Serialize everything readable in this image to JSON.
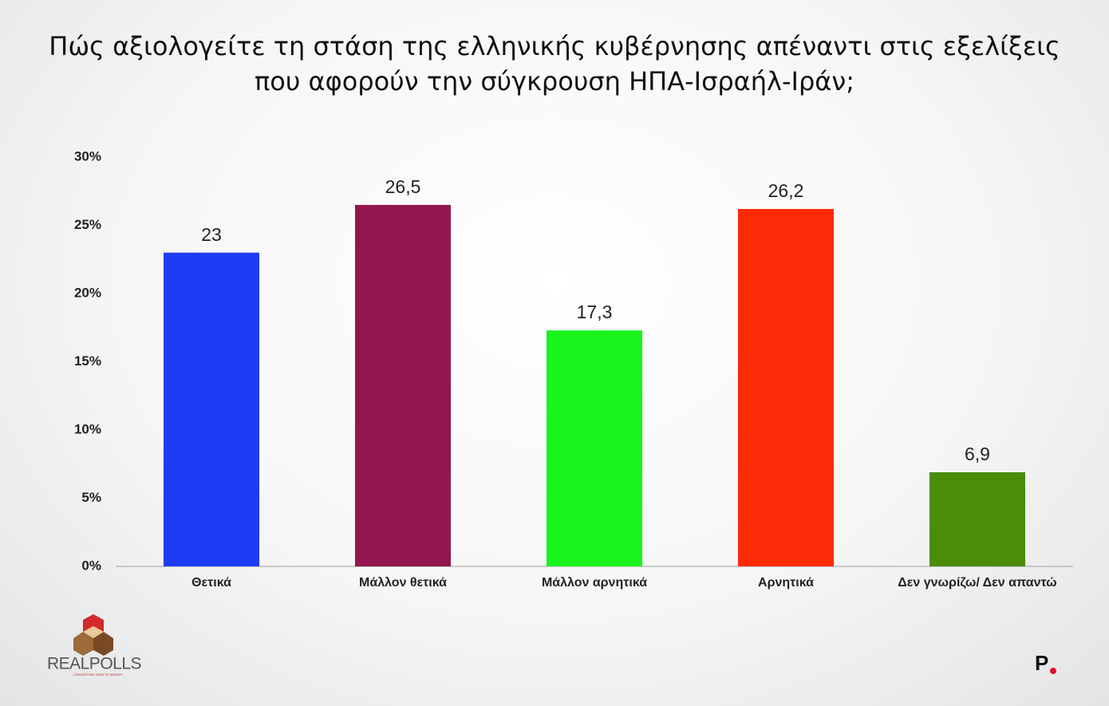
{
  "chart_data": {
    "type": "bar",
    "title": "Πώς αξιολογείτε τη στάση της ελληνικής κυβέρνησης απέναντι στις εξελίξεις που αφορούν την σύγκρουση ΗΠΑ-Ισραήλ-Ιράν;",
    "categories": [
      "Θετικά",
      "Μάλλον θετικά",
      "Μάλλον αρνητικά",
      "Αρνητικά",
      "Δεν γνωρίζω/ Δεν απαντώ"
    ],
    "values": [
      23,
      26.5,
      17.3,
      26.2,
      6.9
    ],
    "value_labels": [
      "23",
      "26,5",
      "17,3",
      "26,2",
      "6,9"
    ],
    "colors": [
      "#1f3cf5",
      "#93174e",
      "#19f41c",
      "#fc2b07",
      "#4b8c0b"
    ],
    "ylim": [
      0,
      30
    ],
    "yticks": [
      {
        "value": 0,
        "label": "0%"
      },
      {
        "value": 5,
        "label": "5%"
      },
      {
        "value": 10,
        "label": "10%"
      },
      {
        "value": 15,
        "label": "15%"
      },
      {
        "value": 20,
        "label": "20%"
      },
      {
        "value": 25,
        "label": "25%"
      },
      {
        "value": 30,
        "label": "30%"
      }
    ],
    "grid": false
  },
  "branding": {
    "logo_text": "REALPOLLS",
    "logo_tagline": "CONVERTING DATA TO INSIGHT",
    "corner_mark": "P"
  }
}
